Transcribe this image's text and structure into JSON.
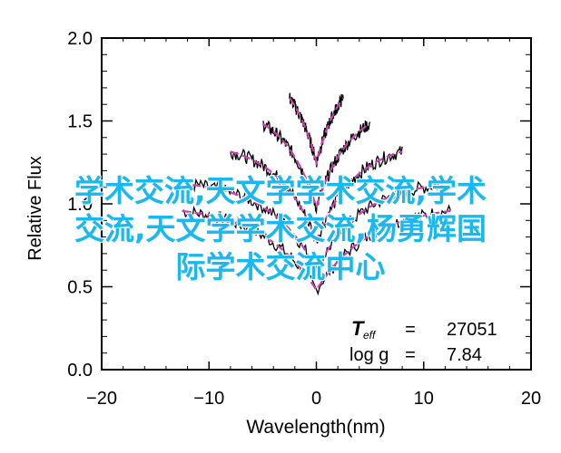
{
  "chart_data": {
    "type": "line",
    "xlabel": "Wavelength(nm)",
    "ylabel": "Relative Flux",
    "xlim": [
      -20,
      20
    ],
    "ylim": [
      0.0,
      2.0
    ],
    "xticks": [
      "−20",
      "−10",
      "0",
      "10",
      "20"
    ],
    "yticks": [
      "0.0",
      "0.5",
      "1.0",
      "1.5",
      "2.0"
    ],
    "x_tick_values": [
      -20,
      -10,
      0,
      10,
      20
    ],
    "y_tick_values": [
      0.0,
      0.5,
      1.0,
      1.5,
      2.0
    ],
    "annotation": {
      "teff_label": "T",
      "teff_sub": "eff",
      "teff_value": "27051",
      "logg_label": "log g",
      "logg_value": "7.84",
      "equals": "="
    },
    "series": [
      {
        "offset": 0.0,
        "xr": [
          -12.5,
          12.5
        ],
        "depth": 0.52,
        "width": 5.0,
        "color": "#000000",
        "model_color": "#cc3fb0"
      },
      {
        "offset": 0.15,
        "xr": [
          -11.5,
          11.5
        ],
        "depth": 0.55,
        "width": 4.2,
        "color": "#000000",
        "model_color": "#cc3fb0"
      },
      {
        "offset": 0.38,
        "xr": [
          -8.0,
          8.0
        ],
        "depth": 0.6,
        "width": 3.6,
        "color": "#000000",
        "model_color": "#cc3fb0"
      },
      {
        "offset": 0.6,
        "xr": [
          -5.0,
          5.0
        ],
        "depth": 0.62,
        "width": 3.0,
        "color": "#000000",
        "model_color": "#cc3fb0"
      },
      {
        "offset": 0.85,
        "xr": [
          -2.5,
          2.5
        ],
        "depth": 0.6,
        "width": 2.4,
        "color": "#000000",
        "model_color": "#cc3fb0"
      }
    ]
  },
  "overlay": {
    "lines": [
      "学术交流,天文学学术交流,学术",
      "交流,天文学学术交流,杨勇辉国",
      "际学术交流中心"
    ],
    "color": "#1ab8ee"
  }
}
